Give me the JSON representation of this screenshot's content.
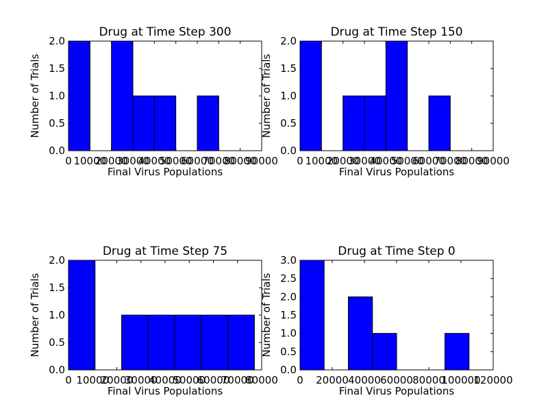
{
  "chart_data": [
    {
      "type": "bar",
      "title": "Drug at Time Step 300",
      "xlabel": "Final Virus Populations",
      "ylabel": "Number of Trials",
      "xlim": [
        0,
        90000
      ],
      "ylim": [
        0,
        2.0
      ],
      "xticks": [
        "0",
        "10000",
        "20000",
        "30000",
        "40000",
        "50000",
        "60000",
        "70000",
        "80000",
        "90000"
      ],
      "yticks": [
        "0.0",
        "0.5",
        "1.0",
        "1.5",
        "2.0"
      ],
      "bins": [
        {
          "x0": 0,
          "x1": 10000,
          "count": 2
        },
        {
          "x0": 10000,
          "x1": 20000,
          "count": 0
        },
        {
          "x0": 20000,
          "x1": 30000,
          "count": 2
        },
        {
          "x0": 30000,
          "x1": 40000,
          "count": 1
        },
        {
          "x0": 40000,
          "x1": 50000,
          "count": 1
        },
        {
          "x0": 50000,
          "x1": 60000,
          "count": 0
        },
        {
          "x0": 60000,
          "x1": 70000,
          "count": 1
        }
      ]
    },
    {
      "type": "bar",
      "title": "Drug at Time Step 150",
      "xlabel": "Final Virus Populations",
      "ylabel": "Number of Trials",
      "xlim": [
        0,
        90000
      ],
      "ylim": [
        0,
        2.0
      ],
      "xticks": [
        "0",
        "10000",
        "20000",
        "30000",
        "40000",
        "50000",
        "60000",
        "70000",
        "80000",
        "90000"
      ],
      "yticks": [
        "0.0",
        "0.5",
        "1.0",
        "1.5",
        "2.0"
      ],
      "bins": [
        {
          "x0": 0,
          "x1": 10000,
          "count": 2
        },
        {
          "x0": 10000,
          "x1": 20000,
          "count": 0
        },
        {
          "x0": 20000,
          "x1": 30000,
          "count": 1
        },
        {
          "x0": 30000,
          "x1": 40000,
          "count": 1
        },
        {
          "x0": 40000,
          "x1": 50000,
          "count": 2
        },
        {
          "x0": 50000,
          "x1": 60000,
          "count": 0
        },
        {
          "x0": 60000,
          "x1": 70000,
          "count": 1
        }
      ]
    },
    {
      "type": "bar",
      "title": "Drug at Time Step 75",
      "xlabel": "Final Virus Populations",
      "ylabel": "Number of Trials",
      "xlim": [
        0,
        80000
      ],
      "ylim": [
        0,
        2.0
      ],
      "xticks": [
        "0",
        "10000",
        "20000",
        "30000",
        "40000",
        "50000",
        "60000",
        "70000",
        "80000"
      ],
      "yticks": [
        "0.0",
        "0.5",
        "1.0",
        "1.5",
        "2.0"
      ],
      "bins": [
        {
          "x0": 0,
          "x1": 11000,
          "count": 2
        },
        {
          "x0": 11000,
          "x1": 22000,
          "count": 0
        },
        {
          "x0": 22000,
          "x1": 33000,
          "count": 1
        },
        {
          "x0": 33000,
          "x1": 44000,
          "count": 1
        },
        {
          "x0": 44000,
          "x1": 55000,
          "count": 1
        },
        {
          "x0": 55000,
          "x1": 66000,
          "count": 1
        },
        {
          "x0": 66000,
          "x1": 77000,
          "count": 1
        }
      ]
    },
    {
      "type": "bar",
      "title": "Drug at Time Step 0",
      "xlabel": "Final Virus Populations",
      "ylabel": "Number of Trials",
      "xlim": [
        0,
        120000
      ],
      "ylim": [
        0,
        3.0
      ],
      "xticks": [
        "0",
        "20000",
        "40000",
        "60000",
        "80000",
        "100000",
        "120000"
      ],
      "yticks": [
        "0.0",
        "0.5",
        "1.0",
        "1.5",
        "2.0",
        "2.5",
        "3.0"
      ],
      "bins": [
        {
          "x0": 0,
          "x1": 15000,
          "count": 3
        },
        {
          "x0": 15000,
          "x1": 30000,
          "count": 0
        },
        {
          "x0": 30000,
          "x1": 45000,
          "count": 2
        },
        {
          "x0": 45000,
          "x1": 60000,
          "count": 1
        },
        {
          "x0": 60000,
          "x1": 75000,
          "count": 0
        },
        {
          "x0": 75000,
          "x1": 90000,
          "count": 0
        },
        {
          "x0": 90000,
          "x1": 105000,
          "count": 1
        }
      ]
    }
  ],
  "colors": {
    "bar": "#0000ff",
    "edge": "#000000"
  }
}
